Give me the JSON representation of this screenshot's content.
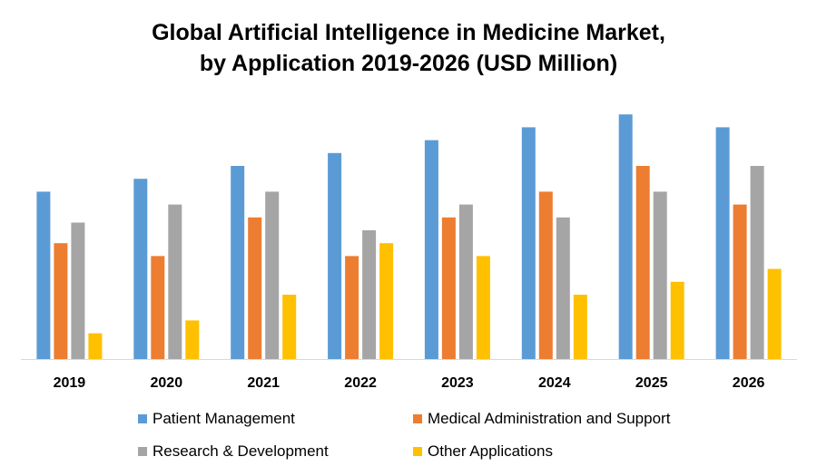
{
  "chart_data": {
    "type": "bar",
    "title_line1": "Global Artificial Intelligence in Medicine Market,",
    "title_line2": "by Application 2019-2026 (USD Million)",
    "categories": [
      "2019",
      "2020",
      "2021",
      "2022",
      "2023",
      "2024",
      "2025",
      "2026"
    ],
    "series": [
      {
        "name": "Patient Management",
        "color": "#5B9BD5",
        "values": [
          6.5,
          7.0,
          7.5,
          8.0,
          8.5,
          9.0,
          9.5,
          9.0
        ]
      },
      {
        "name": "Medical Administration and Support",
        "color": "#ED7D31",
        "values": [
          4.5,
          4.0,
          5.5,
          4.0,
          5.5,
          6.5,
          7.5,
          6.0
        ]
      },
      {
        "name": "Research & Development",
        "color": "#A5A5A5",
        "values": [
          5.3,
          6.0,
          6.5,
          5.0,
          6.0,
          5.5,
          6.5,
          7.5
        ]
      },
      {
        "name": "Other Applications",
        "color": "#FFC000",
        "values": [
          1.0,
          1.5,
          2.5,
          4.5,
          4.0,
          2.5,
          3.0,
          3.5
        ]
      }
    ],
    "ylim": [
      0,
      10
    ],
    "y_axis_visible": false,
    "grid": false,
    "legend_position": "bottom"
  }
}
